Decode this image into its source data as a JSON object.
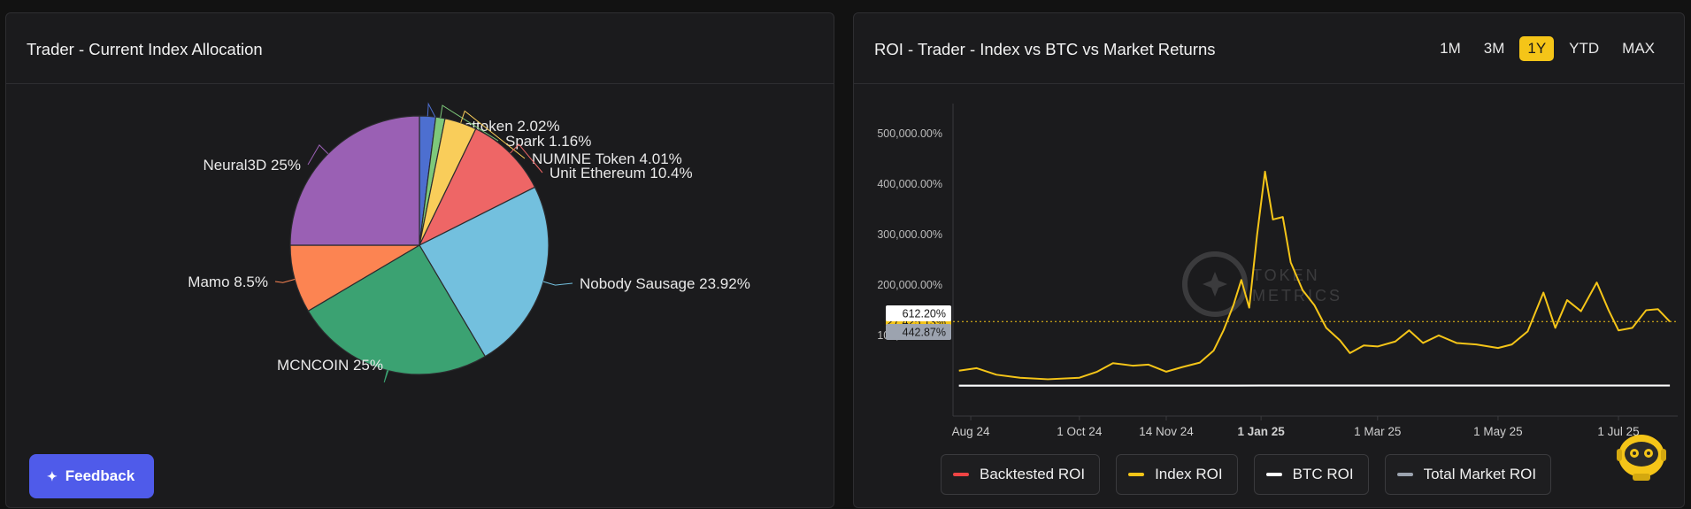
{
  "allocation_panel": {
    "title": "Trader - Current Index Allocation"
  },
  "roi_panel": {
    "title": "ROI - Trader - Index vs BTC vs Market Returns",
    "ranges": [
      {
        "label": "1M",
        "active": false
      },
      {
        "label": "3M",
        "active": false
      },
      {
        "label": "1Y",
        "active": true
      },
      {
        "label": "YTD",
        "active": false
      },
      {
        "label": "MAX",
        "active": false
      }
    ],
    "legend": [
      {
        "label": "Backtested ROI",
        "color": "#ef4444"
      },
      {
        "label": "Index ROI",
        "color": "#f5c518"
      },
      {
        "label": "BTC ROI",
        "color": "#ffffff"
      },
      {
        "label": "Total Market ROI",
        "color": "#9ca3af"
      }
    ],
    "watermark": "TOKEN METRICS"
  },
  "feedback": {
    "label": "Feedback"
  },
  "chart_data": [
    {
      "type": "pie",
      "slices": [
        {
          "label": "Fasttoken",
          "value": 2.02,
          "display": "2.02%",
          "color": "#4d6fd0"
        },
        {
          "label": "Spark",
          "value": 1.16,
          "display": "1.16%",
          "color": "#7ec87a"
        },
        {
          "label": "NUMINE Token",
          "value": 4.01,
          "display": "4.01%",
          "color": "#f9cd5a"
        },
        {
          "label": "Unit Ethereum",
          "value": 10.4,
          "display": "10.4%",
          "color": "#ee6666"
        },
        {
          "label": "Nobody Sausage",
          "value": 23.92,
          "display": "23.92%",
          "color": "#73c0de"
        },
        {
          "label": "MCNCOIN",
          "value": 25,
          "display": "25%",
          "color": "#3ba272"
        },
        {
          "label": "Mamo",
          "value": 8.5,
          "display": "8.5%",
          "color": "#fc8452"
        },
        {
          "label": "Neural3D",
          "value": 25,
          "display": "25%",
          "color": "#9a60b4"
        }
      ]
    },
    {
      "type": "line",
      "x_ticks": [
        "Aug 24",
        "1 Oct 24",
        "14 Nov 24",
        "1 Jan 25",
        "1 Mar 25",
        "1 May 25",
        "1 Jul 25"
      ],
      "y_ticks": [
        "100,000.00%",
        "200,000.00%",
        "300,000.00%",
        "400,000.00%",
        "500,000.00%"
      ],
      "ylim": [
        -60000,
        560000
      ],
      "series": [
        {
          "name": "Index ROI",
          "color": "#f5c518",
          "current_label": "127,425.13%",
          "current": 127425,
          "points": [
            [
              "2024-08-01",
              30000
            ],
            [
              "2024-08-10",
              35000
            ],
            [
              "2024-08-20",
              22000
            ],
            [
              "2024-09-01",
              16000
            ],
            [
              "2024-09-15",
              13000
            ],
            [
              "2024-10-01",
              16000
            ],
            [
              "2024-10-10",
              28000
            ],
            [
              "2024-10-18",
              45000
            ],
            [
              "2024-10-28",
              40000
            ],
            [
              "2024-11-05",
              42000
            ],
            [
              "2024-11-14",
              28000
            ],
            [
              "2024-11-22",
              37000
            ],
            [
              "2024-12-01",
              46000
            ],
            [
              "2024-12-08",
              70000
            ],
            [
              "2024-12-13",
              110000
            ],
            [
              "2024-12-18",
              160000
            ],
            [
              "2024-12-22",
              210000
            ],
            [
              "2024-12-26",
              155000
            ],
            [
              "2024-12-30",
              300000
            ],
            [
              "2025-01-03",
              425000
            ],
            [
              "2025-01-07",
              330000
            ],
            [
              "2025-01-12",
              335000
            ],
            [
              "2025-01-16",
              245000
            ],
            [
              "2025-01-22",
              190000
            ],
            [
              "2025-01-28",
              160000
            ],
            [
              "2025-02-03",
              115000
            ],
            [
              "2025-02-10",
              90000
            ],
            [
              "2025-02-15",
              65000
            ],
            [
              "2025-02-22",
              80000
            ],
            [
              "2025-03-01",
              78000
            ],
            [
              "2025-03-10",
              88000
            ],
            [
              "2025-03-17",
              110000
            ],
            [
              "2025-03-24",
              85000
            ],
            [
              "2025-04-01",
              100000
            ],
            [
              "2025-04-10",
              85000
            ],
            [
              "2025-04-20",
              82000
            ],
            [
              "2025-05-01",
              75000
            ],
            [
              "2025-05-08",
              82000
            ],
            [
              "2025-05-16",
              108000
            ],
            [
              "2025-05-24",
              185000
            ],
            [
              "2025-05-30",
              115000
            ],
            [
              "2025-06-05",
              170000
            ],
            [
              "2025-06-12",
              148000
            ],
            [
              "2025-06-20",
              205000
            ],
            [
              "2025-06-26",
              150000
            ],
            [
              "2025-07-01",
              110000
            ],
            [
              "2025-07-08",
              115000
            ],
            [
              "2025-07-15",
              150000
            ],
            [
              "2025-07-21",
              152000
            ],
            [
              "2025-07-27",
              127425
            ]
          ]
        },
        {
          "name": "BTC ROI",
          "color": "#ffffff",
          "current_label": "612.20%",
          "current": 612.2,
          "points": [
            [
              "2024-08-01",
              300
            ],
            [
              "2025-01-01",
              500
            ],
            [
              "2025-07-27",
              612.2
            ]
          ]
        },
        {
          "name": "Total Market ROI",
          "color": "#9ca3af",
          "current_label": "442.87%",
          "current": 442.87,
          "points": [
            [
              "2024-08-01",
              200
            ],
            [
              "2025-01-01",
              380
            ],
            [
              "2025-07-27",
              442.87
            ]
          ]
        }
      ]
    }
  ]
}
